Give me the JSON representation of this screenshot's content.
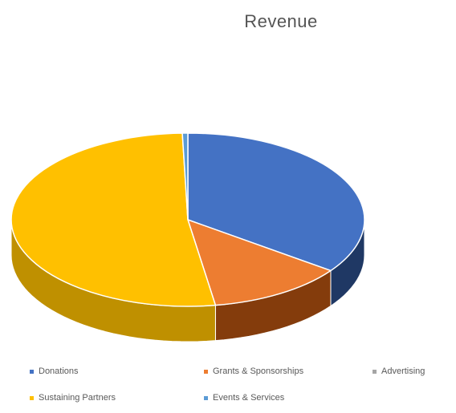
{
  "chart_data": {
    "type": "pie",
    "title": "Revenue",
    "legend_position": "bottom",
    "style": "3d",
    "slices": [
      {
        "label": "Donations",
        "value": 35,
        "color": "#4472C4",
        "side_color": "#1F3864"
      },
      {
        "label": "Grants & Sponsorships",
        "value": 12.5,
        "color": "#ED7D31",
        "side_color": "#843C0C"
      },
      {
        "label": "Advertising",
        "value": 0,
        "color": "#A5A5A5",
        "side_color": "#7F7F7F"
      },
      {
        "label": "Sustaining Partners",
        "value": 52,
        "color": "#FFC000",
        "side_color": "#BF9000"
      },
      {
        "label": "Events & Services",
        "value": 0.5,
        "color": "#5B9BD5",
        "side_color": "#2E5F8A"
      }
    ]
  }
}
